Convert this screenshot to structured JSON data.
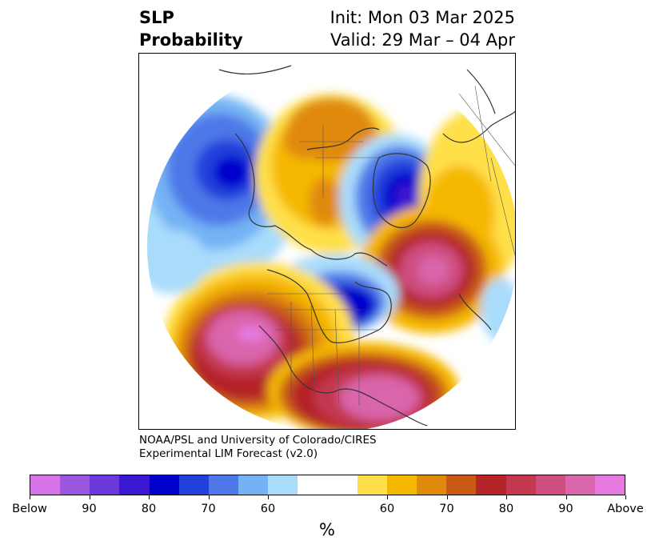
{
  "title": {
    "left_line1": "SLP",
    "left_line2": "Probability",
    "right_line1": "Init: Mon 03 Mar 2025",
    "right_line2": "Valid: 29 Mar – 04 Apr"
  },
  "credit": {
    "line1": "NOAA/PSL and University of Colorado/CIRES",
    "line2": "Experimental LIM Forecast (v2.0)"
  },
  "colorbar": {
    "colors": [
      "#d673e8",
      "#9a57de",
      "#6b38d9",
      "#3a17d3",
      "#0000cc",
      "#233fdb",
      "#4e78e8",
      "#74b2f4",
      "#a9dcfb",
      "#ffffff",
      "#ffffff",
      "#ffe04a",
      "#f5b800",
      "#e08a0c",
      "#c85a16",
      "#b42428",
      "#c43950",
      "#cf4e80",
      "#d965aa",
      "#e67ae0"
    ],
    "tick_labels": [
      "Below",
      "90",
      "80",
      "70",
      "60",
      "60",
      "70",
      "80",
      "90",
      "Above"
    ],
    "unit": "%"
  },
  "map": {
    "projection": "north-polar-stereographic",
    "variable": "SLP probability",
    "colors": {
      "below_strong": "#0000cc",
      "below_mid": "#4e78e8",
      "below_weak": "#a9dcfb",
      "above_weak": "#ffe04a",
      "above_mid": "#f5b800",
      "above_strong": "#b42428",
      "above_extreme": "#d965aa",
      "coastline": "#333333"
    }
  }
}
